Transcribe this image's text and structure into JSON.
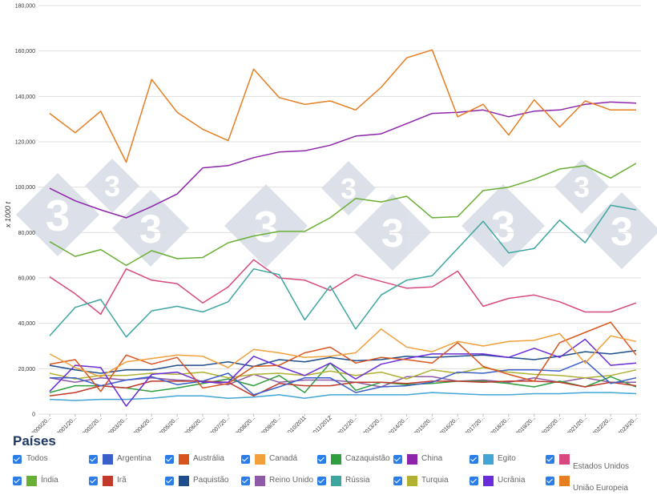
{
  "chart_data": {
    "type": "line",
    "title": "",
    "ylabel": "x 1000 t",
    "xlabel": "",
    "ylim": [
      0,
      180000
    ],
    "y_ticks": [
      "0",
      "20,000",
      "40,000",
      "60,000",
      "80,000",
      "100,000",
      "120,000",
      "140,000",
      "160,000",
      "180,000"
    ],
    "categories": [
      "2000/20...",
      "2001/20...",
      "2002/20...",
      "2003/20...",
      "2004/20...",
      "2005/20...",
      "2006/20...",
      "2007/20...",
      "2008/20...",
      "2009/20...",
      "2010/2011",
      "2011/2012",
      "2012/20...",
      "2013/20...",
      "2014/20...",
      "2015/20...",
      "2016/20...",
      "2017/20...",
      "2018/20...",
      "2019/20...",
      "2020/20...",
      "2021/20...",
      "2022/20...",
      "2023/20..."
    ],
    "series": [
      {
        "name": "União Europeia",
        "color": "#e67e22",
        "values": [
          132500,
          124000,
          133500,
          111000,
          147500,
          133000,
          125500,
          120500,
          152000,
          139500,
          136500,
          138000,
          134000,
          144000,
          157000,
          160500,
          131000,
          136500,
          123000,
          138500,
          126500,
          138000,
          134000,
          134000
        ]
      },
      {
        "name": "China",
        "color": "#8e24aa",
        "values": [
          99500,
          94000,
          90000,
          86500,
          91500,
          97000,
          108500,
          109500,
          113000,
          115500,
          116000,
          118500,
          122500,
          123500,
          128000,
          132500,
          133000,
          134000,
          131000,
          133500,
          134000,
          136500,
          137500,
          137000
        ]
      },
      {
        "name": "Índia",
        "color": "#6aaf35",
        "values": [
          76000,
          69500,
          72500,
          65500,
          72000,
          68500,
          69000,
          75500,
          78500,
          80500,
          80500,
          86500,
          95000,
          93500,
          96000,
          86500,
          87000,
          98500,
          100000,
          103500,
          108000,
          109500,
          104000,
          110500
        ]
      },
      {
        "name": "Rússia",
        "color": "#3ea6a0",
        "values": [
          34500,
          47000,
          50500,
          34000,
          45500,
          47500,
          45000,
          49500,
          64000,
          61500,
          41500,
          56500,
          37500,
          52500,
          59000,
          61000,
          73000,
          85000,
          71000,
          73000,
          85500,
          75500,
          92000,
          90000
        ]
      },
      {
        "name": "Estados Unidos",
        "color": "#d6487e",
        "values": [
          60500,
          53000,
          44000,
          64000,
          59000,
          57500,
          49000,
          56000,
          68000,
          60000,
          59000,
          54500,
          61500,
          58500,
          55500,
          56000,
          63000,
          47500,
          51000,
          52500,
          49500,
          45000,
          45000,
          49000
        ]
      },
      {
        "name": "Canadá",
        "color": "#f0a03c",
        "values": [
          26500,
          20500,
          16500,
          23000,
          24500,
          26000,
          25500,
          20500,
          28500,
          27000,
          25000,
          25500,
          27000,
          37500,
          29500,
          27500,
          32000,
          30000,
          32000,
          32500,
          35500,
          22500,
          34500,
          32000
        ]
      },
      {
        "name": "Austrália",
        "color": "#d8541e",
        "values": [
          22000,
          24000,
          10000,
          26000,
          22000,
          25000,
          11500,
          13500,
          21000,
          21500,
          27000,
          29500,
          22500,
          25000,
          24000,
          22500,
          31500,
          21000,
          17500,
          14500,
          31500,
          36000,
          40500,
          26000
        ]
      },
      {
        "name": "Ucrânia",
        "color": "#6a2bd8",
        "values": [
          10000,
          21500,
          20500,
          3500,
          17500,
          18500,
          14000,
          14000,
          25500,
          21000,
          17000,
          22500,
          15500,
          22000,
          24500,
          26500,
          26500,
          26500,
          25000,
          29000,
          25000,
          33000,
          21500,
          22500
        ]
      },
      {
        "name": "Paquistão",
        "color": "#1f4e8c",
        "values": [
          21500,
          19500,
          18000,
          19500,
          19500,
          21500,
          21500,
          23000,
          21000,
          24000,
          23000,
          25000,
          23500,
          24000,
          25500,
          25000,
          25500,
          26000,
          25000,
          24000,
          25500,
          27500,
          26500,
          28000
        ]
      },
      {
        "name": "Argentina",
        "color": "#3b5fc9",
        "values": [
          16000,
          16000,
          12500,
          15000,
          16500,
          13000,
          14500,
          18000,
          8500,
          12000,
          16000,
          16000,
          9500,
          12000,
          12500,
          14000,
          18500,
          18000,
          19500,
          19500,
          19000,
          23500,
          13500,
          16000
        ]
      },
      {
        "name": "Turquia",
        "color": "#b0b132",
        "values": [
          18000,
          15500,
          17000,
          17000,
          18000,
          17500,
          18500,
          16000,
          17500,
          18000,
          17000,
          19000,
          17000,
          18500,
          15500,
          19500,
          18000,
          20500,
          18500,
          17500,
          17000,
          16000,
          17000,
          19500
        ]
      },
      {
        "name": "Irã",
        "color": "#c0392b",
        "values": [
          8000,
          9500,
          12500,
          11500,
          14500,
          14500,
          14500,
          14000,
          8000,
          13500,
          12500,
          12500,
          14000,
          14000,
          13500,
          14500,
          14500,
          14000,
          14500,
          14500,
          14000,
          12000,
          14000,
          12500
        ]
      },
      {
        "name": "Cazaquistão",
        "color": "#2e9e3e",
        "values": [
          9500,
          12500,
          12500,
          11500,
          10000,
          11500,
          13500,
          15500,
          12500,
          17000,
          9500,
          22500,
          10500,
          14000,
          13000,
          13500,
          14500,
          14500,
          13500,
          12000,
          14500,
          12000,
          16500,
          12000
        ]
      },
      {
        "name": "Egito",
        "color": "#42a5d6",
        "values": [
          6500,
          6000,
          6500,
          6500,
          7000,
          8000,
          8000,
          7000,
          7500,
          8500,
          7000,
          8500,
          8500,
          8500,
          8500,
          9500,
          9000,
          8500,
          8500,
          9000,
          9000,
          9500,
          9500,
          9000
        ]
      },
      {
        "name": "Reino Unido",
        "color": "#8e5aa8",
        "values": [
          16000,
          14000,
          16000,
          15000,
          16000,
          15000,
          14500,
          13000,
          17500,
          14000,
          15000,
          15000,
          14000,
          12000,
          16500,
          16500,
          14500,
          15000,
          14000,
          16000,
          14000,
          16000,
          14000,
          14000
        ]
      }
    ]
  },
  "legend": {
    "title": "Países",
    "items": [
      {
        "label": "Todos",
        "color": ""
      },
      {
        "label": "Argentina",
        "color": "#3b5fc9"
      },
      {
        "label": "Austrália",
        "color": "#d8541e"
      },
      {
        "label": "Canadá",
        "color": "#f0a03c"
      },
      {
        "label": "Cazaquistão",
        "color": "#2e9e3e"
      },
      {
        "label": "China",
        "color": "#8e24aa"
      },
      {
        "label": "Egito",
        "color": "#42a5d6"
      },
      {
        "label": "Estados Unidos",
        "color": "#d6487e"
      },
      {
        "label": "Índia",
        "color": "#6aaf35"
      },
      {
        "label": "Irã",
        "color": "#c0392b"
      },
      {
        "label": "Paquistão",
        "color": "#1f4e8c"
      },
      {
        "label": "Reino Unido",
        "color": "#8e5aa8"
      },
      {
        "label": "Rússia",
        "color": "#3ea6a0"
      },
      {
        "label": "Turquia",
        "color": "#b0b132"
      },
      {
        "label": "Ucrânia",
        "color": "#6a2bd8"
      },
      {
        "label": "União Europeia",
        "color": "#e67e22"
      }
    ]
  },
  "watermark": {
    "text": "3"
  }
}
